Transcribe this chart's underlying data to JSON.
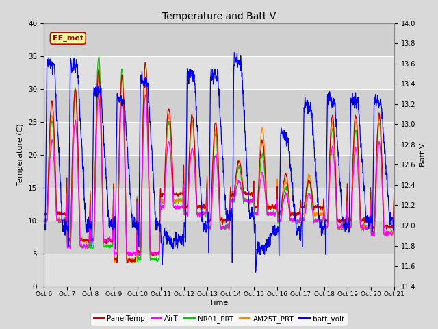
{
  "title": "Temperature and Batt V",
  "xlabel": "Time",
  "ylabel_left": "Temperature (C)",
  "ylabel_right": "Batt V",
  "annotation": "EE_met",
  "ylim_left": [
    0,
    40
  ],
  "ylim_right": [
    11.4,
    14.0
  ],
  "x_tick_labels": [
    "Oct 6",
    "Oct 7",
    "Oct 8",
    "Oct 9",
    "Oct 10",
    "Oct 11",
    "Oct 12",
    "Oct 13",
    "Oct 14",
    "Oct 15",
    "Oct 16",
    "Oct 17",
    "Oct 18",
    "Oct 19",
    "Oct 20",
    "Oct 21"
  ],
  "yticks_left": [
    0,
    5,
    10,
    15,
    20,
    25,
    30,
    35,
    40
  ],
  "yticks_right": [
    11.4,
    11.6,
    11.8,
    12.0,
    12.2,
    12.4,
    12.6,
    12.8,
    13.0,
    13.2,
    13.4,
    13.6,
    13.8,
    14.0
  ],
  "colors": {
    "PanelTemp": "#cc0000",
    "AirT": "#ff00ff",
    "NR01_PRT": "#00cc00",
    "AM25T_PRT": "#ff8800",
    "batt_volt": "#0000ee"
  },
  "legend_labels": [
    "PanelTemp",
    "AirT",
    "NR01_PRT",
    "AM25T_PRT",
    "batt_volt"
  ],
  "background_color": "#d9d9d9",
  "plot_bg_color": "#d9d9d9",
  "grid_color": "#ffffff",
  "annotation_bg": "#ffff99",
  "annotation_border": "#cc0000",
  "annotation_text_color": "#990000",
  "band_colors": [
    "#e8e8e8",
    "#d0d0d0"
  ]
}
